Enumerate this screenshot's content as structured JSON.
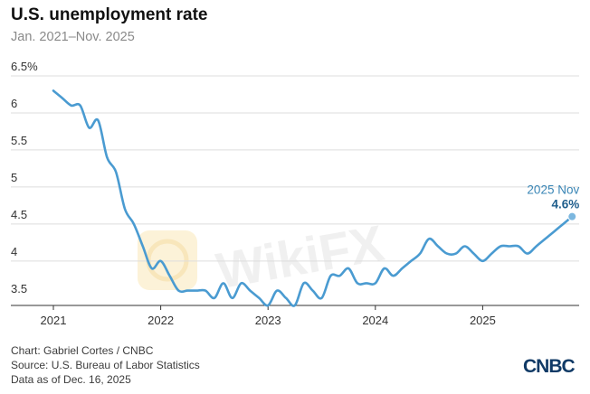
{
  "title": "U.S. unemployment rate",
  "subtitle": "Jan. 2021–Nov. 2025",
  "watermark": "WikiFX",
  "footer": {
    "credit": "Chart: Gabriel Cortes / CNBC",
    "source": "Source: U.S. Bureau of Labor Statistics",
    "date": "Data as of Dec. 16, 2025"
  },
  "logo_text": "CNBC",
  "colors": {
    "line": "#4a9bd1",
    "annotation_label": "#3a86b6",
    "annotation_value": "#1f5e8c",
    "grid": "#dddddd",
    "axis": "#333333"
  },
  "chart_data": {
    "type": "line",
    "title": "U.S. unemployment rate",
    "subtitle": "Jan. 2021–Nov. 2025",
    "xlabel": "",
    "ylabel": "",
    "ylim": [
      3.4,
      6.5
    ],
    "yticks": [
      3.5,
      4,
      4.5,
      5,
      5.5,
      6,
      6.5
    ],
    "ytick_labels": [
      "3.5",
      "4",
      "4.5",
      "5",
      "5.5",
      "6",
      "6.5%"
    ],
    "xticks": [
      2021,
      2022,
      2023,
      2024,
      2025
    ],
    "xtick_labels": [
      "2021",
      "2022",
      "2023",
      "2024",
      "2025"
    ],
    "grid": true,
    "series": [
      {
        "start_year": 2021,
        "values": [
          6.3,
          6.2,
          6.1,
          6.1,
          5.8,
          5.9,
          5.4,
          5.2,
          4.7,
          4.5,
          4.2,
          3.9,
          4.0,
          3.8,
          3.6,
          3.6,
          3.6,
          3.6,
          3.5,
          3.7,
          3.5,
          3.7,
          3.6,
          3.5,
          3.4,
          3.6,
          3.5,
          3.4,
          3.7,
          3.6,
          3.5,
          3.8,
          3.8,
          3.9,
          3.7,
          3.7,
          3.7,
          3.9,
          3.8,
          3.9,
          4.0,
          4.1,
          4.3,
          4.2,
          4.1,
          4.1,
          4.2,
          4.1,
          4.0,
          4.1,
          4.2,
          4.2,
          4.2,
          4.1,
          4.2,
          4.3,
          4.4,
          4.5,
          4.6
        ]
      }
    ],
    "annotation": {
      "label": "2025 Nov",
      "value_label": "4.6%",
      "x_year": 2025,
      "x_month": 11,
      "y": 4.6
    }
  }
}
